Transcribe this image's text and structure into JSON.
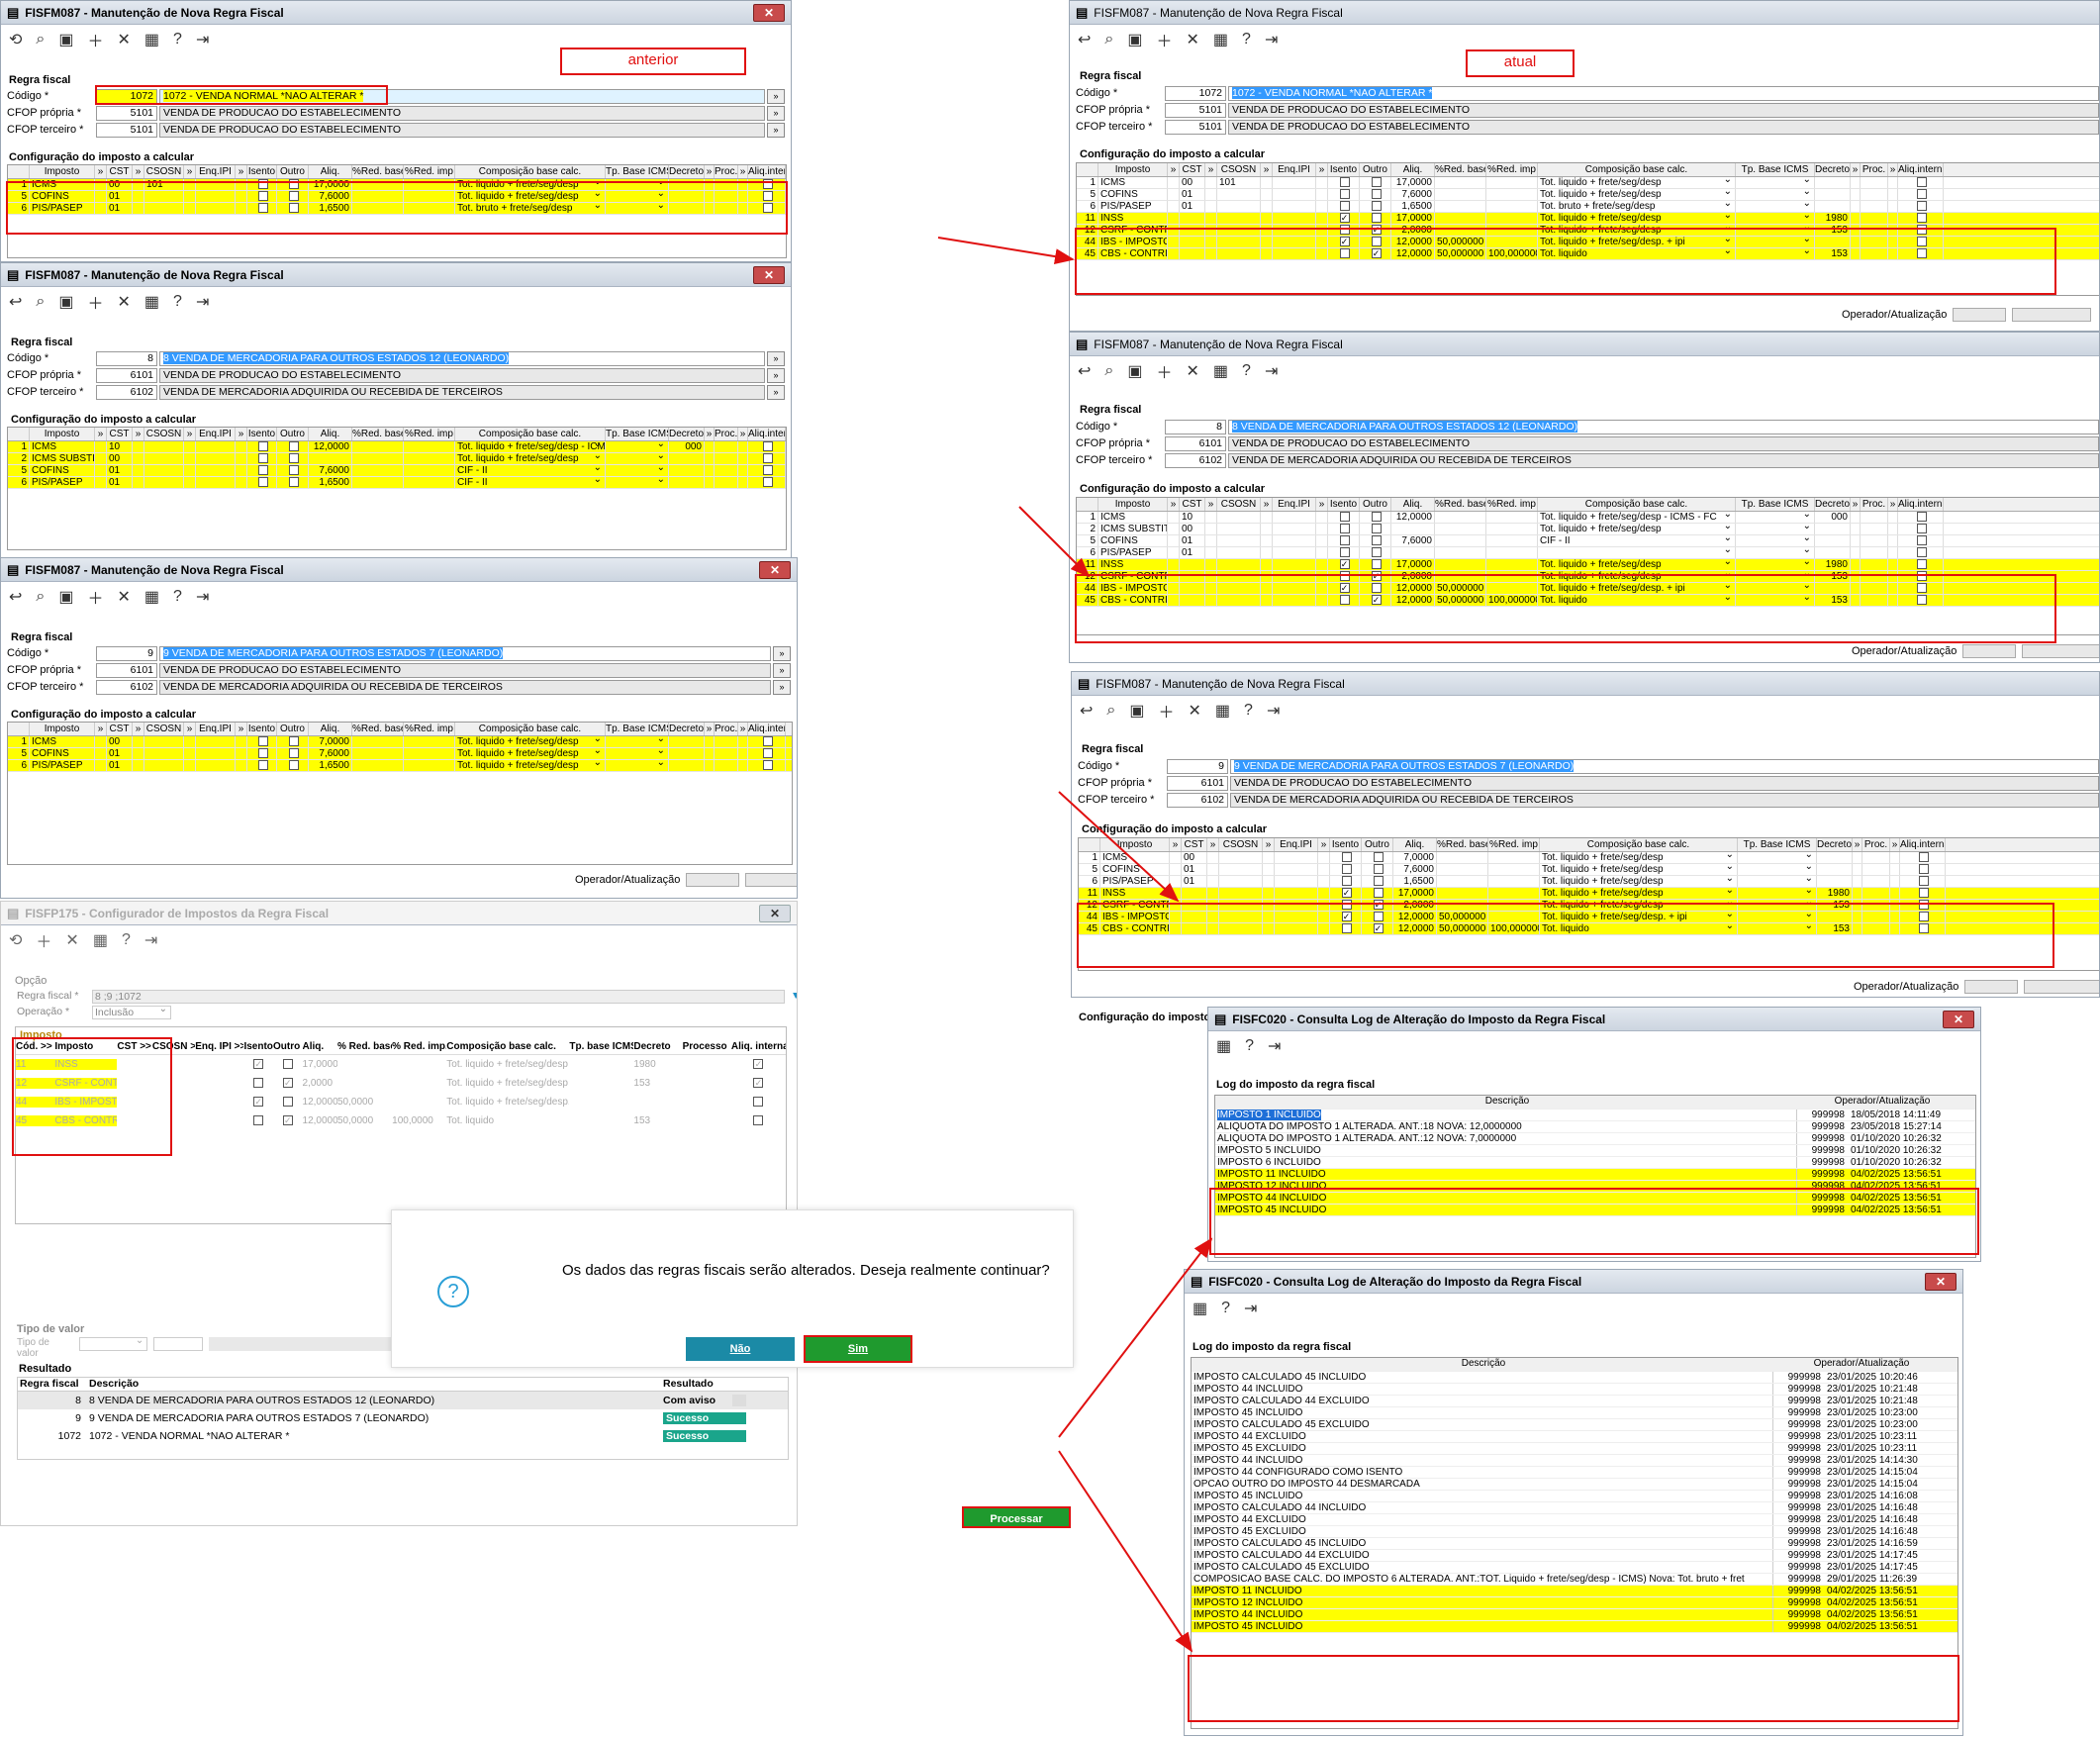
{
  "labels": {
    "anterior": "anterior",
    "atual": "atual"
  },
  "common": {
    "regra_fiscal": "Regra fiscal",
    "codigo": "Código *",
    "cfop_propria": "CFOP própria *",
    "cfop_terceiro": "CFOP terceiro *",
    "config": "Configuração do imposto a calcular",
    "operador": "Operador/Atualização",
    "cols": [
      "Imposto",
      "»",
      "CST",
      "»",
      "CSOSN",
      "»",
      "Enq.IPI",
      "»",
      "Isento",
      "Outro",
      "Aliq.",
      "%Red. base",
      "%Red. imp",
      "Composição base calc.",
      "Tp. Base ICMS",
      "Decreto",
      "»",
      "Proc.",
      "»",
      "Aliq.interna"
    ]
  },
  "w1": {
    "title": "FISFM087 - Manutenção de Nova Regra Fiscal",
    "codigo": "1072",
    "desc": "1072 - VENDA NORMAL  *NAO ALTERAR *",
    "cfop_p": "5101",
    "cfop_p_desc": "VENDA DE PRODUCAO DO ESTABELECIMENTO",
    "cfop_t": "5101",
    "cfop_t_desc": "VENDA DE PRODUCAO DO ESTABELECIMENTO",
    "rows": [
      [
        "1",
        "ICMS",
        "00",
        "101",
        "0",
        "0",
        "17,0000",
        "",
        "",
        "Tot. liquido + frete/seg/desp"
      ],
      [
        "5",
        "COFINS",
        "01",
        "",
        "0",
        "0",
        "7,6000",
        "",
        "",
        "Tot. liquido + frete/seg/desp"
      ],
      [
        "6",
        "PIS/PASEP",
        "01",
        "",
        "0",
        "0",
        "1,6500",
        "",
        "",
        "Tot. bruto + frete/seg/desp"
      ]
    ]
  },
  "w2": {
    "title": "FISFM087 - Manutenção de Nova Regra Fiscal",
    "codigo": "8",
    "desc": "8 VENDA DE MERCADORIA PARA OUTROS ESTADOS 12 (LEONARDO)",
    "cfop_p": "6101",
    "cfop_p_desc": "VENDA DE PRODUCAO DO ESTABELECIMENTO",
    "cfop_t": "6102",
    "cfop_t_desc": "VENDA DE MERCADORIA ADQUIRIDA OU RECEBIDA DE TERCEIROS",
    "rows": [
      [
        "1",
        "ICMS",
        "10",
        "",
        "0",
        "0",
        "12,0000",
        "",
        "",
        "Tot. liquido + frete/seg/desp - ICMS - FC",
        "000"
      ],
      [
        "2",
        "ICMS SUBSTITUIC",
        "00",
        "",
        "0",
        "0",
        "",
        "",
        "",
        "Tot. liquido + frete/seg/desp",
        ""
      ],
      [
        "5",
        "COFINS",
        "01",
        "",
        "0",
        "0",
        "7,6000",
        "",
        "",
        "CIF - II",
        ""
      ],
      [
        "6",
        "PIS/PASEP",
        "01",
        "",
        "0",
        "0",
        "1,6500",
        "",
        "",
        "CIF - II",
        ""
      ]
    ]
  },
  "w3": {
    "title": "FISFM087 - Manutenção de Nova Regra Fiscal",
    "codigo": "9",
    "desc": "9 VENDA DE MERCADORIA PARA OUTROS ESTADOS 7 (LEONARDO)",
    "cfop_p": "6101",
    "cfop_p_desc": "VENDA DE PRODUCAO DO ESTABELECIMENTO",
    "cfop_t": "6102",
    "cfop_t_desc": "VENDA DE MERCADORIA ADQUIRIDA OU RECEBIDA DE TERCEIROS",
    "rows": [
      [
        "1",
        "ICMS",
        "00",
        "",
        "0",
        "0",
        "7,0000",
        "",
        "",
        "Tot. liquido + frete/seg/desp"
      ],
      [
        "5",
        "COFINS",
        "01",
        "",
        "0",
        "0",
        "7,6000",
        "",
        "",
        "Tot. liquido + frete/seg/desp"
      ],
      [
        "6",
        "PIS/PASEP",
        "01",
        "",
        "0",
        "0",
        "1,6500",
        "",
        "",
        "Tot. liquido + frete/seg/desp"
      ]
    ]
  },
  "new_rows": [
    [
      "11",
      "INSS",
      "",
      "",
      "1",
      "0",
      "17,0000",
      "",
      "",
      "Tot. liquido + frete/seg/desp",
      "1980"
    ],
    [
      "12",
      "CSRF - CONTRIBU",
      "",
      "",
      "0",
      "1",
      "2,0000",
      "",
      "",
      "Tot. liquido + frete/seg/desp",
      "153"
    ],
    [
      "44",
      "IBS - IMPOSTO SC",
      "",
      "",
      "1",
      "0",
      "12,0000",
      "50,000000",
      "",
      "Tot. liquido + frete/seg/desp. + ipi",
      ""
    ],
    [
      "45",
      "CBS - CONTRIBUI",
      "",
      "",
      "0",
      "1",
      "12,0000",
      "50,000000",
      "100,000000",
      "Tot. liquido",
      "153"
    ]
  ],
  "r1": {
    "title": "FISFM087 - Manutenção de Nova Regra Fiscal",
    "codigo": "1072",
    "desc": "1072 - VENDA NORMAL  *NAO ALTERAR *",
    "cfop_p": "5101",
    "cfop_p_desc": "VENDA DE PRODUCAO DO ESTABELECIMENTO",
    "cfop_t": "5101",
    "cfop_t_desc": "VENDA DE PRODUCAO DO ESTABELECIMENTO",
    "rows": [
      [
        "1",
        "ICMS",
        "00",
        "101",
        "0",
        "0",
        "17,0000",
        "",
        "",
        "Tot. liquido + frete/seg/desp",
        ""
      ],
      [
        "5",
        "COFINS",
        "01",
        "",
        "0",
        "0",
        "7,6000",
        "",
        "",
        "Tot. liquido + frete/seg/desp",
        ""
      ],
      [
        "6",
        "PIS/PASEP",
        "01",
        "",
        "0",
        "0",
        "1,6500",
        "",
        "",
        "Tot. bruto + frete/seg/desp",
        ""
      ]
    ]
  },
  "r2": {
    "title": "FISFM087 - Manutenção de Nova Regra Fiscal",
    "codigo": "8",
    "desc": "8 VENDA DE MERCADORIA PARA OUTROS ESTADOS 12 (LEONARDO)",
    "cfop_p": "6101",
    "cfop_p_desc": "VENDA DE PRODUCAO DO ESTABELECIMENTO",
    "cfop_t": "6102",
    "cfop_t_desc": "VENDA DE MERCADORIA ADQUIRIDA OU RECEBIDA DE TERCEIROS",
    "rows": [
      [
        "1",
        "ICMS",
        "10",
        "",
        "0",
        "0",
        "12,0000",
        "",
        "",
        "Tot. liquido + frete/seg/desp - ICMS - FC",
        "000"
      ],
      [
        "2",
        "ICMS SUBSTITUIC",
        "00",
        "",
        "0",
        "0",
        "",
        "",
        "",
        "Tot. liquido + frete/seg/desp",
        ""
      ],
      [
        "5",
        "COFINS",
        "01",
        "",
        "0",
        "0",
        "7,6000",
        "",
        "",
        "CIF - II",
        ""
      ],
      [
        "6",
        "PIS/PASEP",
        "01",
        "",
        "0",
        "0",
        "",
        "",
        "",
        "",
        ""
      ]
    ]
  },
  "r3": {
    "title": "FISFM087 - Manutenção de Nova Regra Fiscal",
    "codigo": "9",
    "desc": "9 VENDA DE MERCADORIA PARA OUTROS ESTADOS 7 (LEONARDO)",
    "cfop_p": "6101",
    "cfop_p_desc": "VENDA DE PRODUCAO DO ESTABELECIMENTO",
    "cfop_t": "6102",
    "cfop_t_desc": "VENDA DE MERCADORIA ADQUIRIDA OU RECEBIDA DE TERCEIROS",
    "rows": [
      [
        "1",
        "ICMS",
        "00",
        "",
        "0",
        "0",
        "7,0000",
        "",
        "",
        "Tot. liquido + frete/seg/desp",
        ""
      ],
      [
        "5",
        "COFINS",
        "01",
        "",
        "0",
        "0",
        "7,6000",
        "",
        "",
        "Tot. liquido + frete/seg/desp",
        ""
      ],
      [
        "6",
        "PIS/PASEP",
        "01",
        "",
        "0",
        "0",
        "1,6500",
        "",
        "",
        "Tot. liquido + frete/seg/desp",
        ""
      ]
    ]
  },
  "cfg": {
    "title": "FISFP175 - Configurador de Impostos da Regra Fiscal",
    "opcao": "Opção",
    "regra_label": "Regra fiscal *",
    "regra_val": "8 ;9 ;1072",
    "op_label": "Operação *",
    "op_val": "Inclusão",
    "imposto": "Imposto",
    "cols": [
      "Cód. >>",
      "Imposto",
      "CST >>",
      "CSOSN >>",
      "Enq. IPI >>",
      "Isento",
      "Outro",
      "Aliq.",
      "% Red. base",
      "% Red. imp.",
      "Composição base calc.",
      "Tp. base ICMS",
      "Decreto",
      "Processo",
      "Aliq. interna"
    ],
    "rows": [
      [
        "11",
        "INSS",
        "1",
        "0",
        "17,0000",
        "",
        "",
        "Tot. liquido + frete/seg/desp",
        "1980",
        "1"
      ],
      [
        "12",
        "CSRF - CONTRIBU",
        "0",
        "1",
        "2,0000",
        "",
        "",
        "Tot. liquido + frete/seg/desp",
        "153",
        "1"
      ],
      [
        "44",
        "IBS - IMPOSTO SC",
        "1",
        "0",
        "12,0000",
        "50,0000",
        "",
        "Tot. liquido + frete/seg/desp. +",
        "",
        "0"
      ],
      [
        "45",
        "CBS - CONTRIBUI",
        "0",
        "1",
        "12,0000",
        "50,0000",
        "100,0000",
        "Tot. liquido",
        "153",
        "0"
      ]
    ],
    "tipo_valor": "Tipo de valor",
    "tipo_valor2": "Tipo de valor",
    "resultado": "Resultado",
    "res_cols": [
      "Regra fiscal",
      "Descrição",
      "Resultado"
    ],
    "res_rows": [
      [
        "8",
        "8 VENDA DE MERCADORIA PARA OUTROS ESTADOS 12 (LEONARDO)",
        "Com aviso"
      ],
      [
        "9",
        "9 VENDA DE MERCADORIA PARA OUTROS ESTADOS 7 (LEONARDO)",
        "Sucesso"
      ],
      [
        "1072",
        "1072 - VENDA NORMAL  *NAO ALTERAR *",
        "Sucesso"
      ]
    ],
    "processar": "Processar"
  },
  "dialog": {
    "msg": "Os dados das regras fiscais serão alterados. Deseja realmente continuar?",
    "nao": "Não",
    "sim": "Sim"
  },
  "log1": {
    "title": "FISFC020 - Consulta Log de Alteração do Imposto da Regra Fiscal",
    "sec": "Log do imposto da regra fiscal",
    "h1": "Descrição",
    "h2": "Operador/Atualização",
    "rows": [
      [
        "IMPOSTO 1 INCLUIDO",
        "999998",
        "18/05/2018 14:11:49"
      ],
      [
        "ALIQUOTA DO IMPOSTO 1 ALTERADA. ANT.:18 NOVA: 12,0000000",
        "999998",
        "23/05/2018 15:27:14"
      ],
      [
        "ALIQUOTA DO IMPOSTO 1 ALTERADA. ANT.:12 NOVA: 7,0000000",
        "999998",
        "01/10/2020 10:26:32"
      ],
      [
        "IMPOSTO 5 INCLUIDO",
        "999998",
        "01/10/2020 10:26:32"
      ],
      [
        "IMPOSTO 6 INCLUIDO",
        "999998",
        "01/10/2020 10:26:32"
      ],
      [
        "IMPOSTO 11 INCLUIDO",
        "999998",
        "04/02/2025 13:56:51"
      ],
      [
        "IMPOSTO 12 INCLUIDO",
        "999998",
        "04/02/2025 13:56:51"
      ],
      [
        "IMPOSTO 44 INCLUIDO",
        "999998",
        "04/02/2025 13:56:51"
      ],
      [
        "IMPOSTO 45 INCLUIDO",
        "999998",
        "04/02/2025 13:56:51"
      ]
    ]
  },
  "log2": {
    "title": "FISFC020 - Consulta Log de Alteração do Imposto da Regra Fiscal",
    "sec": "Log do imposto da regra fiscal",
    "h1": "Descrição",
    "h2": "Operador/Atualização",
    "rows": [
      [
        "IMPOSTO CALCULADO 45 INCLUIDO",
        "999998",
        "23/01/2025 10:20:46"
      ],
      [
        "IMPOSTO 44 INCLUIDO",
        "999998",
        "23/01/2025 10:21:48"
      ],
      [
        "IMPOSTO CALCULADO 44 EXCLUIDO",
        "999998",
        "23/01/2025 10:21:48"
      ],
      [
        "IMPOSTO 45 INCLUIDO",
        "999998",
        "23/01/2025 10:23:00"
      ],
      [
        "IMPOSTO CALCULADO 45 EXCLUIDO",
        "999998",
        "23/01/2025 10:23:00"
      ],
      [
        "IMPOSTO 44 EXCLUIDO",
        "999998",
        "23/01/2025 10:23:11"
      ],
      [
        "IMPOSTO 45 EXCLUIDO",
        "999998",
        "23/01/2025 10:23:11"
      ],
      [
        "IMPOSTO 44 INCLUIDO",
        "999998",
        "23/01/2025 14:14:30"
      ],
      [
        "IMPOSTO 44 CONFIGURADO COMO ISENTO",
        "999998",
        "23/01/2025 14:15:04"
      ],
      [
        "OPCAO OUTRO DO IMPOSTO 44 DESMARCADA",
        "999998",
        "23/01/2025 14:15:04"
      ],
      [
        "IMPOSTO 45 INCLUIDO",
        "999998",
        "23/01/2025 14:16:08"
      ],
      [
        "IMPOSTO CALCULADO 44 INCLUIDO",
        "999998",
        "23/01/2025 14:16:48"
      ],
      [
        "IMPOSTO 44 EXCLUIDO",
        "999998",
        "23/01/2025 14:16:48"
      ],
      [
        "IMPOSTO 45 EXCLUIDO",
        "999998",
        "23/01/2025 14:16:48"
      ],
      [
        "IMPOSTO CALCULADO 45 INCLUIDO",
        "999998",
        "23/01/2025 14:16:59"
      ],
      [
        "IMPOSTO CALCULADO 44 EXCLUIDO",
        "999998",
        "23/01/2025 14:17:45"
      ],
      [
        "IMPOSTO CALCULADO 45 EXCLUIDO",
        "999998",
        "23/01/2025 14:17:45"
      ],
      [
        "COMPOSICAO BASE CALC. DO IMPOSTO 6 ALTERADA. ANT.:TOT. Liquido + frete/seg/desp - ICMS) Nova: Tot. bruto + fret",
        "999998",
        "29/01/2025 11:26:39"
      ],
      [
        "IMPOSTO 11 INCLUIDO",
        "999998",
        "04/02/2025 13:56:51"
      ],
      [
        "IMPOSTO 12 INCLUIDO",
        "999998",
        "04/02/2025 13:56:51"
      ],
      [
        "IMPOSTO 44 INCLUIDO",
        "999998",
        "04/02/2025 13:56:51"
      ],
      [
        "IMPOSTO 45 INCLUIDO",
        "999998",
        "04/02/2025 13:56:51"
      ]
    ]
  }
}
